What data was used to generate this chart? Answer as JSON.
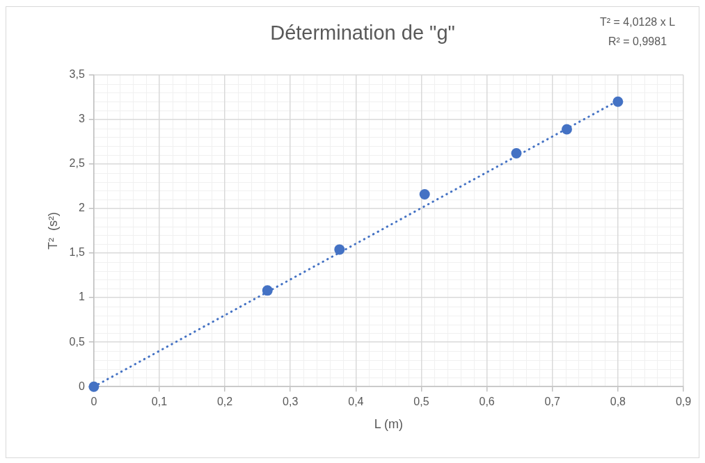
{
  "chart_data": {
    "type": "scatter",
    "title": "Détermination de \"g\"",
    "xlabel": "L (m)",
    "ylabel": "T²  (s²)",
    "annotations": [
      "T² = 4,0128 x L",
      "R² = 0,9981"
    ],
    "series": [
      {
        "color": "#4472c4",
        "x": [
          0,
          0.265,
          0.375,
          0.505,
          0.645,
          0.722,
          0.8
        ],
        "values": [
          0,
          1.08,
          1.54,
          2.16,
          2.62,
          2.89,
          3.2
        ]
      },
      {
        "type": "line",
        "color": "#4472c4",
        "x": [
          0,
          0.8
        ],
        "values": [
          0,
          3.21
        ],
        "line_style": "dotted",
        "marker": "none"
      }
    ],
    "xlim": [
      0,
      0.9
    ],
    "xticks": [
      0,
      {
        "value": 0.1,
        "label": "0,1"
      },
      {
        "value": 0.2,
        "label": "0,2"
      },
      {
        "value": 0.3,
        "label": "0,3"
      },
      {
        "value": 0.4,
        "label": "0,4"
      },
      {
        "value": 0.5,
        "label": "0,5"
      },
      {
        "value": 0.6,
        "label": "0,6"
      },
      {
        "value": 0.7,
        "label": "0,7"
      },
      {
        "value": 0.8,
        "label": "0,8"
      },
      {
        "value": 0.9,
        "label": "0,9"
      }
    ],
    "ylim": [
      0,
      3.5
    ],
    "yticks": [
      0,
      {
        "value": 0.5,
        "label": "0,5"
      },
      1,
      {
        "value": 1.5,
        "label": "1,5"
      },
      2,
      {
        "value": 2.5,
        "label": "2,5"
      },
      3,
      {
        "value": 3.5,
        "label": "3,5"
      }
    ],
    "grid": true,
    "legend": false,
    "marker": "circle"
  }
}
